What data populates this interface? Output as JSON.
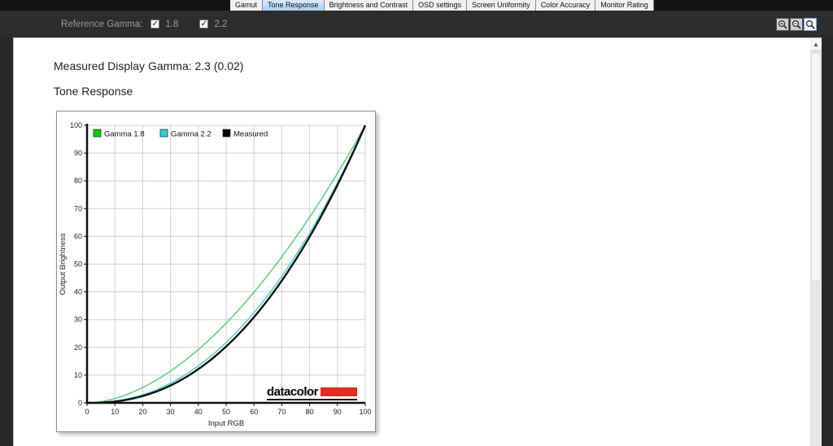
{
  "tabs": {
    "items": [
      {
        "label": "Gamut",
        "selected": false
      },
      {
        "label": "Tone Response",
        "selected": true
      },
      {
        "label": "Brightness and Contrast",
        "selected": false
      },
      {
        "label": "OSD settings",
        "selected": false
      },
      {
        "label": "Screen Uniformity",
        "selected": false
      },
      {
        "label": "Color Accuracy",
        "selected": false
      },
      {
        "label": "Monitor Rating",
        "selected": false
      }
    ]
  },
  "toolbar": {
    "reference_gamma_label": "Reference Gamma:",
    "checkboxes": [
      {
        "label": "1.8",
        "checked": true
      },
      {
        "label": "2.2",
        "checked": true
      }
    ],
    "zoom_buttons": [
      {
        "name": "zoom-in",
        "glyph": "plus",
        "selected": false
      },
      {
        "name": "zoom-out",
        "glyph": "minus",
        "selected": false
      },
      {
        "name": "zoom-fit",
        "glyph": "none",
        "selected": true
      }
    ]
  },
  "content": {
    "measured_gamma_heading": "Measured Display Gamma: 2.3 (0.02)",
    "section_title": "Tone Response"
  },
  "chart_data": {
    "type": "line",
    "title": "",
    "xlabel": "Input RGB",
    "ylabel": "Output Brightness",
    "xlim": [
      0,
      100
    ],
    "ylim": [
      0,
      100
    ],
    "xticks": [
      0,
      10,
      20,
      30,
      40,
      50,
      60,
      70,
      80,
      90,
      100
    ],
    "yticks": [
      0,
      10,
      20,
      30,
      40,
      50,
      60,
      70,
      80,
      90,
      100
    ],
    "grid": true,
    "legend_position": "top-inside",
    "x": [
      0,
      10,
      20,
      30,
      40,
      50,
      60,
      70,
      80,
      90,
      100
    ],
    "series": [
      {
        "name": "Gamma 1.8",
        "gamma": 1.8,
        "color": "#46cb68",
        "legend_fill": "#00d400",
        "line_width": 1.3,
        "values": [
          0,
          1.6,
          5.5,
          11.5,
          19.2,
          28.7,
          39.9,
          52.6,
          66.9,
          82.7,
          100
        ]
      },
      {
        "name": "Gamma 2.2",
        "gamma": 2.2,
        "color": "#35cdcd",
        "legend_fill": "#2ad4d4",
        "line_width": 1.3,
        "values": [
          0,
          0.6,
          2.9,
          7.1,
          13.3,
          21.8,
          32.5,
          45.6,
          61.2,
          79.3,
          100
        ]
      },
      {
        "name": "Measured",
        "gamma": 2.3,
        "color": "#111111",
        "legend_fill": "#000000",
        "line_width": 2.4,
        "values": [
          0,
          0.5,
          2.5,
          6.3,
          12.2,
          20.3,
          30.9,
          44.0,
          59.9,
          78.5,
          100
        ]
      }
    ],
    "grid_color": "#d0d0d0",
    "axis_color": "#111111"
  },
  "logo": {
    "text": "datacolor",
    "bar_color": "#e12c20"
  },
  "colors": {
    "selected_tab": "#a9cfee",
    "toolbar_bg": "#2d2d2d",
    "page_bg": "#282828"
  }
}
